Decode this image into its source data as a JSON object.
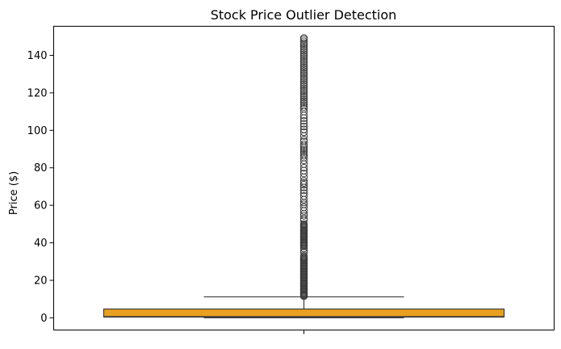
{
  "chart_data": {
    "type": "box",
    "title": "Stock Price Outlier Detection",
    "xlabel": "",
    "ylabel": "Price ($)",
    "ylim": [
      -6.5,
      155.5
    ],
    "yticks": [
      0,
      20,
      40,
      60,
      80,
      100,
      120,
      140
    ],
    "grid": false,
    "legend": "none",
    "box": {
      "color": "#E8A020",
      "edge_color": "#3d3d3d",
      "q1": 0.4,
      "median": 0.7,
      "q3": 4.7,
      "whisker_low": 0.0,
      "whisker_high": 11.2
    },
    "outliers": [
      11.5,
      12,
      12.5,
      13,
      13.5,
      14,
      14.5,
      15,
      15.5,
      16,
      16.5,
      17,
      17.5,
      18,
      18.5,
      19,
      19.5,
      20,
      20.5,
      21,
      21.5,
      22,
      22.5,
      23,
      23.5,
      24,
      24.5,
      25,
      25.5,
      26,
      26.5,
      27,
      27.5,
      28,
      28.5,
      29,
      29.5,
      30,
      30.5,
      31,
      31.5,
      32,
      32.5,
      33,
      35,
      36,
      37,
      38,
      38.5,
      39,
      39.5,
      40,
      40.5,
      41,
      41.5,
      42,
      42.5,
      43,
      43.5,
      44,
      44.5,
      45,
      45.5,
      46,
      46.5,
      47,
      47.5,
      48,
      48.5,
      49,
      49.5,
      50,
      52,
      53,
      54.5,
      55.5,
      57,
      59,
      60.5,
      61.5,
      63,
      65,
      66.5,
      68,
      69.5,
      71,
      72,
      73,
      75,
      77,
      78.5,
      80,
      82,
      84,
      85.5,
      86.5,
      87.5,
      88.5,
      89.5,
      90.5,
      91.5,
      92.5,
      94,
      95,
      97,
      99,
      100.5,
      102,
      103.5,
      105,
      106.5,
      108,
      110,
      111.5,
      112.5,
      113.5,
      114.5,
      115.5,
      116.5,
      117.5,
      118.5,
      119.5,
      120.5,
      121.5,
      122.5,
      123.5,
      124.5,
      125.5,
      126.5,
      127.5,
      128.5,
      129.5,
      130.5,
      131.5,
      132.5,
      133.5,
      134.5,
      135.5,
      136.5,
      137.5,
      138.5,
      139.5,
      140.5,
      141.5,
      142.5,
      143.5,
      144.5,
      145.5,
      146.5,
      147.5,
      148.5,
      149.3
    ]
  }
}
